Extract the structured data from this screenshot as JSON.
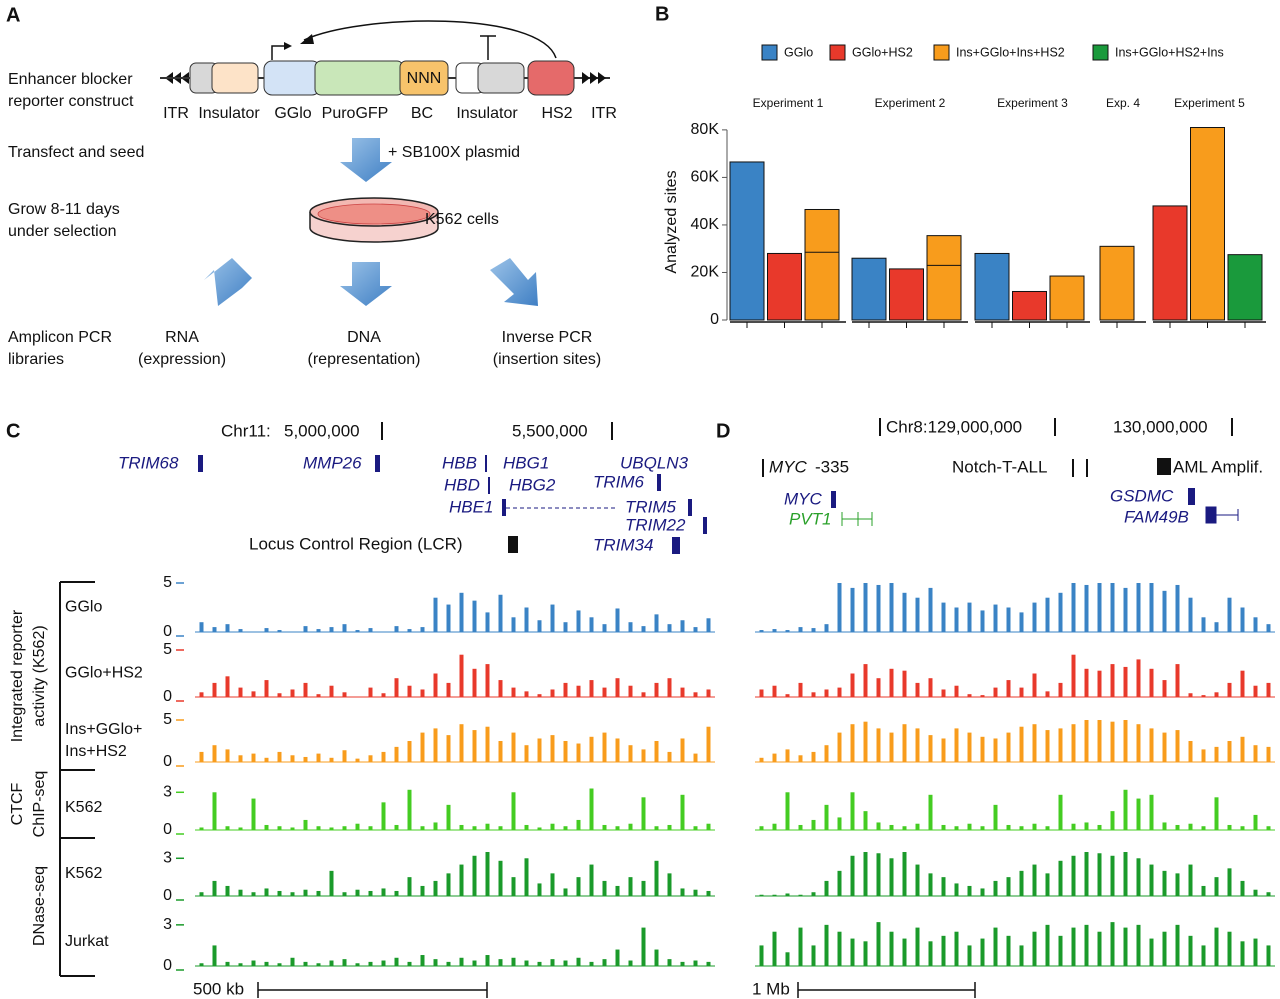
{
  "panel_a": {
    "label": "A",
    "construct_label": [
      "Enhancer blocker",
      "reporter construct"
    ],
    "elements": [
      "ITR",
      "Insulator",
      "GGlo",
      "PuroGFP",
      "BC",
      "Insulator",
      "HS2",
      "ITR"
    ],
    "barcode": "NNN",
    "transfect": "Transfect and seed",
    "plasmid": "+ SB100X plasmid",
    "grow": [
      "Grow 8-11 days",
      "under selection"
    ],
    "cells": "K562 cells",
    "libraries": [
      "Amplicon PCR",
      "libraries"
    ],
    "outputs": [
      [
        "RNA",
        "(expression)"
      ],
      [
        "DNA",
        "(representation)"
      ],
      [
        "Inverse PCR",
        "(insertion sites)"
      ]
    ]
  },
  "chart_data": [
    {
      "type": "bar",
      "label": "B",
      "y_label": "Analyzed sites",
      "categories": [
        "Experiment 1",
        "Experiment 2",
        "Experiment 3",
        "Exp. 4",
        "Experiment 5"
      ],
      "series": [
        {
          "name": "GGlo",
          "color": "#3a83c5",
          "values": [
            66500,
            26000,
            28000,
            null,
            null
          ]
        },
        {
          "name": "GGlo+HS2",
          "color": "#e8392b",
          "values": [
            28000,
            21500,
            12000,
            null,
            48000
          ]
        },
        {
          "name": "Ins+GGlo+Ins+HS2",
          "color": "#f89c1c",
          "values": [
            46500,
            35500,
            18500,
            31000,
            81000
          ],
          "split_at": [
            28500,
            23000,
            null,
            null,
            null
          ]
        },
        {
          "name": "Ins+GGlo+HS2+Ins",
          "color": "#1a9a3c",
          "values": [
            null,
            null,
            null,
            null,
            27500
          ]
        }
      ],
      "ylim": [
        0,
        85000
      ],
      "yticks": [
        0,
        {
          "value": 20000,
          "label": "20K"
        },
        {
          "value": 40000,
          "label": "40K"
        },
        {
          "value": 60000,
          "label": "60K"
        },
        {
          "value": 80000,
          "label": "80K"
        }
      ]
    },
    {
      "type": "track",
      "label": "C",
      "chrom": "Chr11:",
      "coords": [
        "5,000,000",
        "5,500,000"
      ],
      "genes": [
        "TRIM68",
        "MMP26",
        "HBB",
        "HBG1",
        "HBD",
        "HBG2",
        "HBE1",
        "UBQLN3",
        "TRIM6",
        "TRIM5",
        "TRIM22",
        "TRIM34"
      ],
      "annotation": "Locus Control Region (LCR)",
      "scale": "500 kb",
      "groups": [
        [
          "Integrated reporter",
          "activity (K562)"
        ],
        [
          "CTCF",
          "ChIP-seq"
        ],
        [
          "DNase-seq"
        ]
      ],
      "tracks": [
        {
          "name": "GGlo",
          "color": "#3a83c5",
          "ylim": [
            0,
            5
          ],
          "yticks": [
            0,
            5
          ],
          "values": [
            1,
            0.5,
            0.8,
            0.3,
            0,
            0.4,
            0.2,
            0,
            0.6,
            0.3,
            0.5,
            0.8,
            0.2,
            0.4,
            0,
            0.6,
            0.3,
            0.5,
            3.5,
            2.8,
            4,
            3.2,
            2,
            3.8,
            1.5,
            2.5,
            1.2,
            2.8,
            1,
            2.2,
            1.5,
            0.8,
            2.4,
            1,
            0.6,
            1.8,
            0.8,
            1.2,
            0.5,
            1.4
          ]
        },
        {
          "name": "GGlo+HS2",
          "color": "#e8392b",
          "ylim": [
            0,
            5
          ],
          "yticks": [
            0,
            5
          ],
          "values": [
            0.5,
            1.5,
            2.2,
            1,
            0.6,
            1.8,
            0.4,
            0.8,
            1.5,
            0.3,
            1.2,
            0.5,
            0,
            1,
            0.4,
            2,
            1.2,
            0.8,
            2.5,
            1.5,
            4.5,
            3,
            3.5,
            1.8,
            1,
            0.6,
            0.3,
            0.8,
            1.5,
            1.2,
            1.8,
            1,
            2,
            1.2,
            0.5,
            1.5,
            2,
            1,
            0.5,
            0.8
          ]
        },
        {
          "name": [
            "Ins+GGlo+",
            "Ins+HS2"
          ],
          "color": "#f89c1c",
          "ylim": [
            0,
            5
          ],
          "yticks": [
            0,
            5
          ],
          "values": [
            1.2,
            2,
            1.5,
            0.8,
            1,
            0.5,
            1.2,
            0.8,
            0.6,
            1,
            0.5,
            1.4,
            0.4,
            0.8,
            1.2,
            1.8,
            2.5,
            3.5,
            4,
            3.2,
            4.5,
            3.8,
            4.2,
            2.5,
            3.5,
            2,
            2.8,
            3.2,
            2.5,
            2.2,
            3,
            3.5,
            2.8,
            2,
            1.5,
            2.5,
            1.2,
            2.8,
            1,
            4.2
          ]
        },
        {
          "name": "K562",
          "color": "#44cc22",
          "ylim": [
            0,
            3.5
          ],
          "yticks": [
            0,
            3
          ],
          "values": [
            0.2,
            3,
            0.3,
            0.2,
            2.5,
            0.4,
            0.3,
            0.2,
            0.8,
            0.3,
            0.2,
            0.3,
            0.5,
            0.3,
            2.2,
            0.4,
            3.2,
            0.3,
            0.6,
            2,
            0.4,
            0.3,
            0.5,
            0.3,
            3,
            0.4,
            0.2,
            0.5,
            0.3,
            0.8,
            3.3,
            0.4,
            0.3,
            0.5,
            2.6,
            0.3,
            0.4,
            2.8,
            0.3,
            0.5
          ]
        },
        {
          "name": "K562",
          "color": "#1a9a2a",
          "ylim": [
            0,
            3.5
          ],
          "yticks": [
            0,
            3
          ],
          "values": [
            0.3,
            1.2,
            0.8,
            0.5,
            0.3,
            0.6,
            0.4,
            0.3,
            0.5,
            0.4,
            2,
            0.3,
            0.5,
            0.4,
            0.6,
            0.4,
            1.5,
            0.8,
            1.2,
            1.8,
            2.5,
            3.2,
            3.5,
            2.8,
            1.5,
            3,
            1,
            1.8,
            0.6,
            1.5,
            2.5,
            1.2,
            0.8,
            1.5,
            1.2,
            2.8,
            1.8,
            0.6,
            0.5,
            0.4
          ]
        },
        {
          "name": "Jurkat",
          "color": "#1a9a2a",
          "ylim": [
            0,
            3.5
          ],
          "yticks": [
            0,
            3
          ],
          "values": [
            0.2,
            1.5,
            0.3,
            0.2,
            0.4,
            0.3,
            0.2,
            0.6,
            0.3,
            0.2,
            0.4,
            0.5,
            0.2,
            0.3,
            0.4,
            0.6,
            0.3,
            0.8,
            0.5,
            0.3,
            0.6,
            0.4,
            0.8,
            0.5,
            0.6,
            0.4,
            0.3,
            0.5,
            0.4,
            0.6,
            0.3,
            0.5,
            1.2,
            0.4,
            2.8,
            1.2,
            0.5,
            0.3,
            0.4,
            0.3
          ]
        }
      ]
    },
    {
      "type": "track",
      "label": "D",
      "coords": [
        "Chr8:129,000,000",
        "130,000,000"
      ],
      "genes": [
        "MYC",
        "PVT1",
        "GSDMC",
        "FAM49B"
      ],
      "annotations": [
        "MYC",
        "-335",
        "Notch-T-ALL",
        "AML Amplif."
      ],
      "scale": "1 Mb",
      "tracks": [
        {
          "color": "#3a83c5",
          "ylim": [
            0,
            5
          ],
          "values": [
            0.2,
            0.3,
            0.2,
            0.5,
            0.4,
            0.8,
            5,
            4.5,
            5,
            4.8,
            5,
            4,
            3.5,
            4.5,
            3,
            2.5,
            3,
            2.2,
            2.8,
            2.5,
            2,
            3,
            3.5,
            4,
            5,
            4.8,
            5,
            5,
            4.5,
            5,
            5,
            4.2,
            4.8,
            3.5,
            1.5,
            1,
            3.5,
            2.5,
            1.5,
            0.8
          ]
        },
        {
          "color": "#e8392b",
          "ylim": [
            0,
            5
          ],
          "values": [
            0.8,
            1.2,
            0.3,
            1.5,
            0.5,
            0.8,
            1,
            2.5,
            3.5,
            2,
            3,
            2.8,
            1.5,
            2,
            0.8,
            1.2,
            0.3,
            0.2,
            1,
            1.8,
            1,
            2.5,
            0.6,
            1.5,
            4.5,
            3,
            2.8,
            3.5,
            3.2,
            4,
            3,
            1.8,
            3.5,
            0.4,
            0.2,
            0.5,
            1.5,
            2.8,
            1.2,
            1.5
          ]
        },
        {
          "color": "#f89c1c",
          "ylim": [
            0,
            5
          ],
          "values": [
            0.5,
            1,
            1.5,
            0.8,
            1.2,
            2,
            3.5,
            4.5,
            4.8,
            4,
            3.5,
            4.5,
            4,
            3.2,
            2.8,
            4,
            3.5,
            3,
            2.8,
            3.5,
            4.2,
            4.5,
            3.8,
            4,
            4.5,
            5,
            5,
            4.8,
            5,
            4.5,
            4,
            3.5,
            3.8,
            2.5,
            1.5,
            1.8,
            2.5,
            3,
            2,
            1.8
          ]
        },
        {
          "color": "#44cc22",
          "ylim": [
            0,
            3.5
          ],
          "values": [
            0.3,
            0.5,
            3,
            0.4,
            0.8,
            2,
            1,
            3,
            1.5,
            0.6,
            0.4,
            0.3,
            0.5,
            2.8,
            0.4,
            0.3,
            0.5,
            0.3,
            2,
            0.4,
            0.3,
            0.5,
            0.3,
            2.8,
            0.5,
            0.6,
            0.4,
            1.5,
            3.2,
            2.5,
            2.8,
            0.6,
            0.4,
            0.5,
            0.3,
            2.6,
            0.4,
            0.3,
            1.2,
            0.3
          ]
        },
        {
          "color": "#1a9a2a",
          "ylim": [
            0,
            3.5
          ],
          "values": [
            0.1,
            0.1,
            0.2,
            0.1,
            0.3,
            1.2,
            2,
            3.2,
            3.5,
            3.4,
            3,
            3.5,
            2.5,
            1.8,
            1.5,
            1,
            0.8,
            0.6,
            1.2,
            1.5,
            2,
            2.5,
            1.8,
            2.8,
            3.2,
            3.5,
            3.4,
            3.2,
            3.5,
            3,
            2.5,
            2,
            1.8,
            2.5,
            0.8,
            1.5,
            2.2,
            1.2,
            0.5,
            0.3
          ]
        },
        {
          "color": "#1a9a2a",
          "ylim": [
            0,
            3.5
          ],
          "values": [
            1.5,
            2.5,
            1,
            2.8,
            1.5,
            3,
            2.5,
            2,
            1.8,
            3.2,
            2.5,
            2,
            2.8,
            1.8,
            2.2,
            2.5,
            1.5,
            2,
            2.8,
            2.2,
            1.5,
            2.5,
            3,
            2.2,
            2.8,
            3,
            2.5,
            3.2,
            2.8,
            3,
            2,
            2.5,
            3,
            2.2,
            1.5,
            2.8,
            2.5,
            1.8,
            2,
            1.5
          ]
        }
      ]
    }
  ]
}
